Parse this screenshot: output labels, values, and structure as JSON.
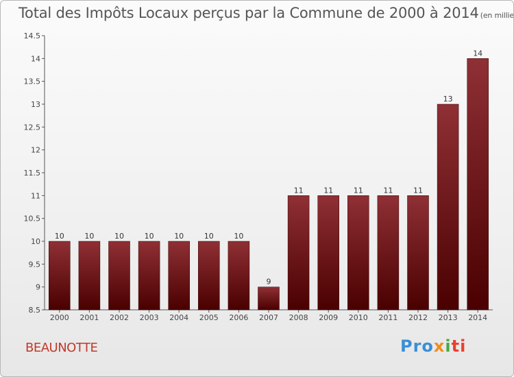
{
  "title_main": "Total des Impôts Locaux perçus par la Commune de 2000 à 2014",
  "title_unit": "(en milliers d'€)",
  "commune": "BEAUNOTTE",
  "brand": {
    "p1": "Pro",
    "p2": "x",
    "p3": "i",
    "p4": "ti"
  },
  "colors": {
    "bar_top": "#8f3035",
    "bar_bottom": "#4a0000",
    "title": "#555555",
    "commune": "#c0392b"
  },
  "chart_data": {
    "type": "bar",
    "title": "Total des Impôts Locaux perçus par la Commune de 2000 à 2014",
    "xlabel": "",
    "ylabel": "",
    "categories": [
      "2000",
      "2001",
      "2002",
      "2003",
      "2004",
      "2005",
      "2006",
      "2007",
      "2008",
      "2009",
      "2010",
      "2011",
      "2012",
      "2013",
      "2014"
    ],
    "values": [
      10,
      10,
      10,
      10,
      10,
      10,
      10,
      9,
      11,
      11,
      11,
      11,
      11,
      13,
      14
    ],
    "ylim": [
      8.5,
      14.5
    ],
    "yticks": [
      8.5,
      9,
      9.5,
      10,
      10.5,
      11,
      11.5,
      12,
      12.5,
      13,
      13.5,
      14,
      14.5
    ],
    "grid": false
  }
}
